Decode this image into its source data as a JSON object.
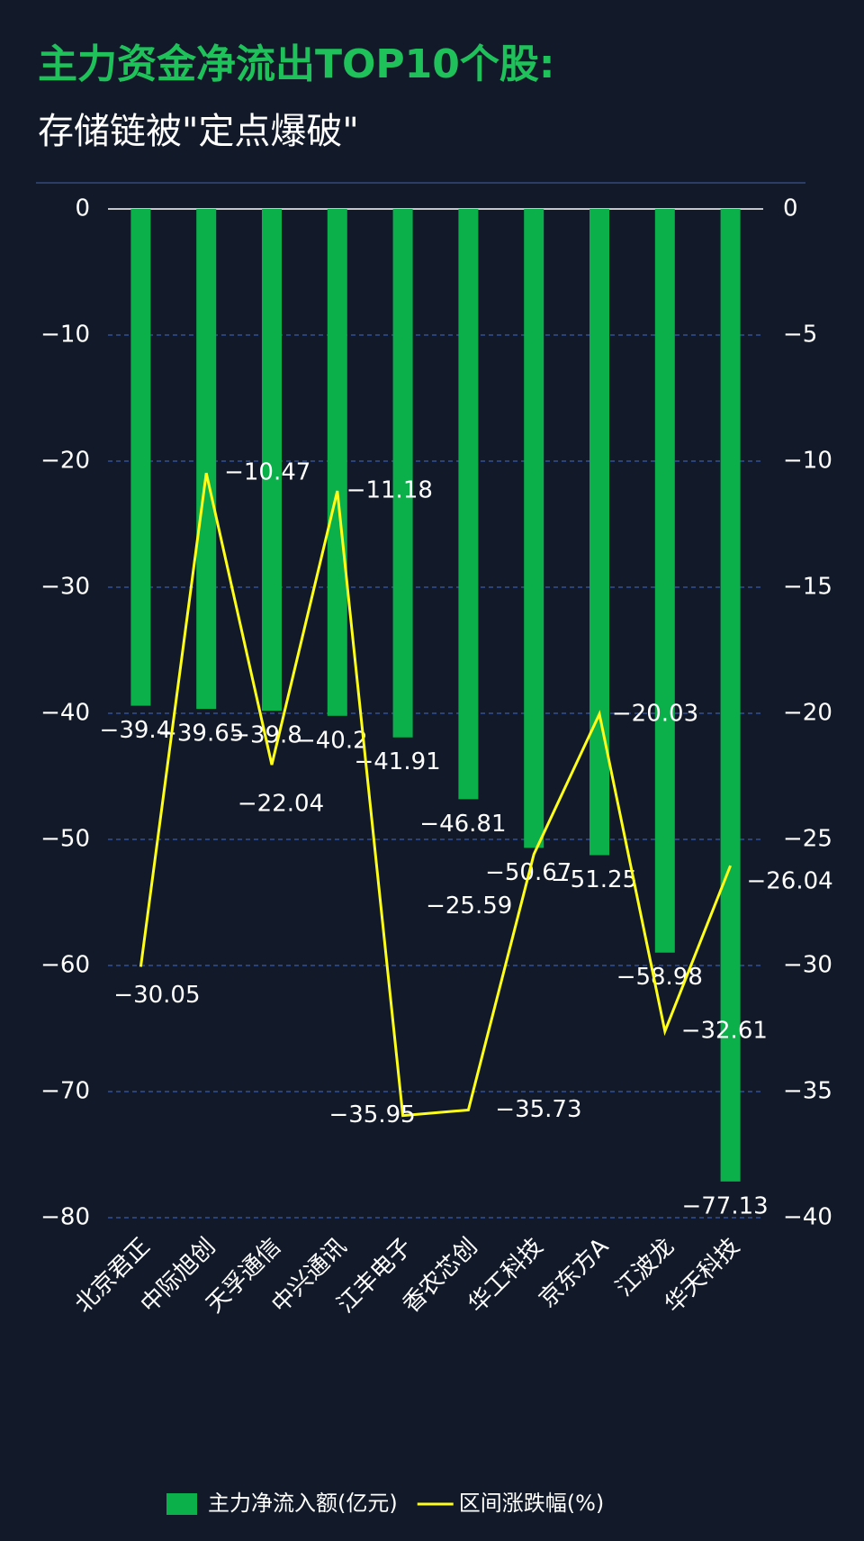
{
  "chart_data": {
    "type": "bar_line",
    "title": "主力资金净流出TOP10个股:",
    "subtitle": "存储链被\"定点爆破\"",
    "categories": [
      "北京君正",
      "中际旭创",
      "天孚通信",
      "中兴通讯",
      "江丰电子",
      "香农芯创",
      "华工科技",
      "京东方A",
      "江波龙",
      "华天科技"
    ],
    "series": [
      {
        "name": "主力净流入额(亿元)",
        "type": "bar",
        "color": "#0bb04b",
        "values": [
          -39.4,
          -39.65,
          -39.8,
          -40.2,
          -41.91,
          -46.81,
          -50.67,
          -51.25,
          -58.98,
          -77.13
        ],
        "value_labels": [
          "−39.4",
          "−39.65",
          "−39.8",
          "−40.2",
          "−41.91",
          "−46.81",
          "−50.67",
          "−51.25",
          "−58.98",
          "−77.13"
        ]
      },
      {
        "name": "区间涨跌幅(%)",
        "type": "line",
        "axis": "y2",
        "color": "#ffff1a",
        "values": [
          -30.05,
          -10.47,
          -22.04,
          -11.18,
          -35.95,
          -35.73,
          -25.59,
          -20.03,
          -32.61,
          -26.04
        ],
        "value_labels": [
          "−30.05",
          "−10.47",
          "−22.04",
          "−11.18",
          "−35.95",
          "−35.73",
          "−25.59",
          "−20.03",
          "−32.61",
          "−26.04"
        ]
      }
    ],
    "ylim": [
      -80,
      0
    ],
    "yticks": [
      0,
      {
        "value": -10,
        "label": "−10"
      },
      {
        "value": -20,
        "label": "−20"
      },
      {
        "value": -30,
        "label": "−30"
      },
      {
        "value": -40,
        "label": "−40"
      },
      {
        "value": -50,
        "label": "−50"
      },
      {
        "value": -60,
        "label": "−60"
      },
      {
        "value": -70,
        "label": "−70"
      },
      {
        "value": -80,
        "label": "−80"
      }
    ],
    "y2lim": [
      -40,
      0
    ],
    "y2ticks": [
      0,
      {
        "value": -5,
        "label": "−5"
      },
      {
        "value": -10,
        "label": "−10"
      },
      {
        "value": -15,
        "label": "−15"
      },
      {
        "value": -20,
        "label": "−20"
      },
      {
        "value": -25,
        "label": "−25"
      },
      {
        "value": -30,
        "label": "−30"
      },
      {
        "value": -35,
        "label": "−35"
      },
      {
        "value": -40,
        "label": "−40"
      }
    ],
    "grid": true,
    "legend": "bottom"
  }
}
